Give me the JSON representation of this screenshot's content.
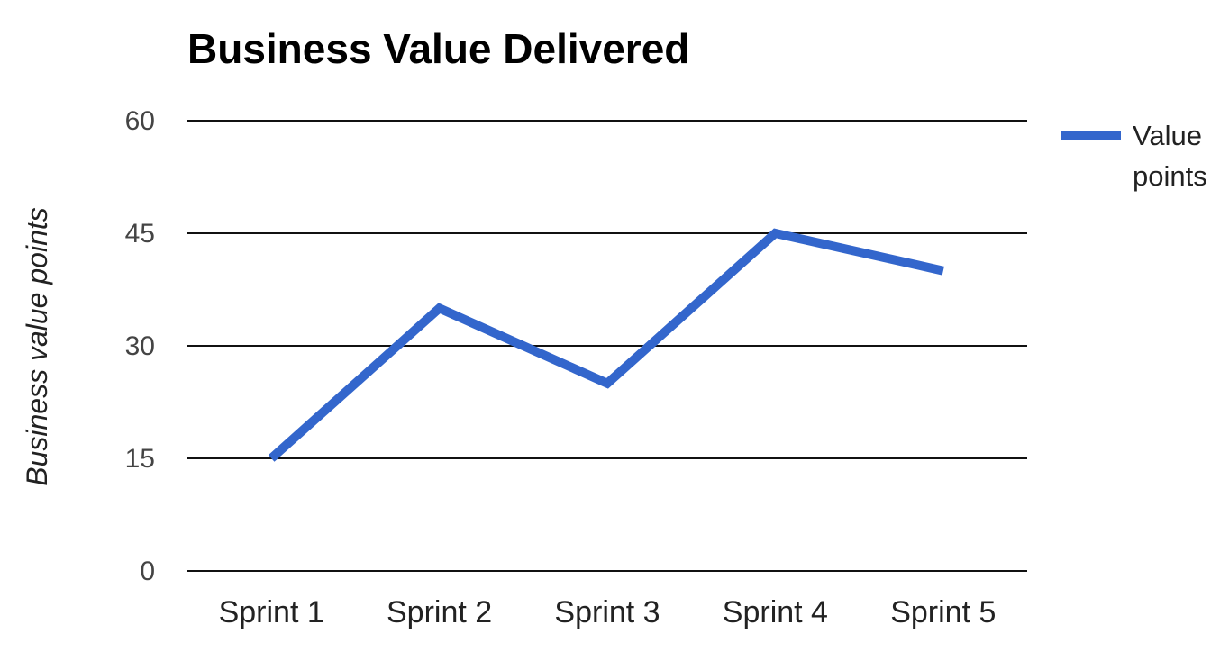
{
  "chart_data": {
    "type": "line",
    "title": "Business Value Delivered",
    "xlabel": "",
    "ylabel": "Business value points",
    "categories": [
      "Sprint 1",
      "Sprint 2",
      "Sprint 3",
      "Sprint 4",
      "Sprint 5"
    ],
    "series": [
      {
        "name": "Value points",
        "legend_lines": [
          "Value",
          "points"
        ],
        "color": "#3366cc",
        "values": [
          15,
          35,
          25,
          45,
          40
        ]
      }
    ],
    "ylim": [
      0,
      60
    ],
    "yticks": [
      0,
      15,
      30,
      45,
      60
    ],
    "ytick_labels": [
      "0",
      "15",
      "30",
      "45",
      "60"
    ],
    "grid": true,
    "legend_position": "right"
  }
}
